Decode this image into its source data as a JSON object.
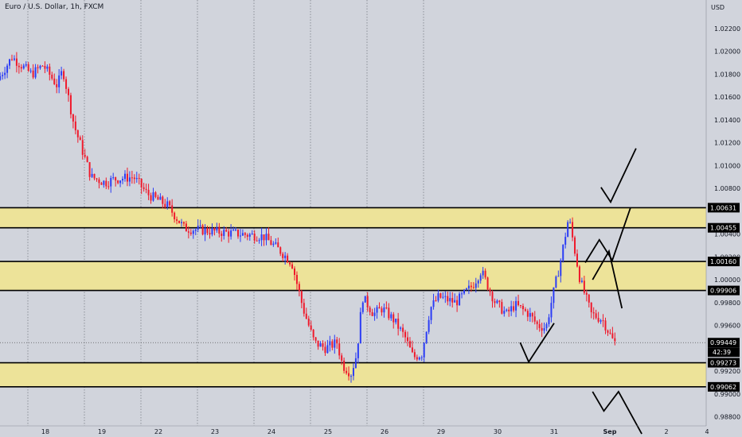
{
  "header": {
    "title": "Euro / U.S. Dollar, 1h, FXCM"
  },
  "axis": {
    "currency": "USD"
  },
  "colors": {
    "background": "#d1d4dc",
    "up": "#2b3cf5",
    "down": "#ef1a2c",
    "zone_fill": "#ede399",
    "zone_border": "#000000",
    "grid_dotted": "#7a7e88",
    "drawing": "#000000",
    "tag_bg": "#000000",
    "tag_text": "#ffffff"
  },
  "chart_data": {
    "type": "candlestick",
    "title": "Euro / U.S. Dollar, 1h, FXCM",
    "ylabel": "USD",
    "ylim": [
      0.9872,
      1.0245
    ],
    "y_ticks": [
      1.022,
      1.02,
      1.018,
      1.016,
      1.014,
      1.012,
      1.01,
      1.008,
      1.004,
      1.002,
      1.0,
      0.998,
      0.996,
      0.992,
      0.99,
      0.988
    ],
    "x_ticks": [
      "18",
      "19",
      "22",
      "23",
      "24",
      "25",
      "26",
      "29",
      "30",
      "31",
      "Sep",
      "2",
      "4"
    ],
    "session_dividers": true,
    "zones": [
      {
        "top": 1.00631,
        "bottom": 1.00455
      },
      {
        "top": 1.0016,
        "bottom": 0.99906
      },
      {
        "top": 0.99273,
        "bottom": 0.99062
      }
    ],
    "price_tags": [
      "1.00631",
      "1.00455",
      "1.00160",
      "0.99906",
      "0.99449",
      "0.99273",
      "0.99062"
    ],
    "countdown": "42:39",
    "current_price": 0.99449,
    "keypoints": [
      {
        "d": 17.2,
        "p": 1.0175
      },
      {
        "d": 17.45,
        "p": 1.0195
      },
      {
        "d": 17.8,
        "p": 1.018
      },
      {
        "d": 18.0,
        "p": 1.0188
      },
      {
        "d": 18.25,
        "p": 1.017
      },
      {
        "d": 18.35,
        "p": 1.0184
      },
      {
        "d": 18.55,
        "p": 1.0135
      },
      {
        "d": 18.75,
        "p": 1.0105
      },
      {
        "d": 18.85,
        "p": 1.009
      },
      {
        "d": 19.1,
        "p": 1.0085
      },
      {
        "d": 19.25,
        "p": 1.0088
      },
      {
        "d": 19.6,
        "p": 1.009
      },
      {
        "d": 19.85,
        "p": 1.0075
      },
      {
        "d": 20.2,
        "p": 1.0065
      },
      {
        "d": 20.5,
        "p": 1.0045
      },
      {
        "d": 21.9,
        "p": 1.0038
      },
      {
        "d": 22.2,
        "p": 1.0025
      },
      {
        "d": 22.4,
        "p": 1.0015
      },
      {
        "d": 22.6,
        "p": 0.9975
      },
      {
        "d": 22.8,
        "p": 0.9945
      },
      {
        "d": 23.0,
        "p": 0.994
      },
      {
        "d": 23.2,
        "p": 0.9945
      },
      {
        "d": 23.3,
        "p": 0.9925
      },
      {
        "d": 23.45,
        "p": 0.9918
      },
      {
        "d": 23.55,
        "p": 0.9935
      },
      {
        "d": 23.65,
        "p": 0.9985
      },
      {
        "d": 23.85,
        "p": 0.997
      },
      {
        "d": 24.0,
        "p": 0.9975
      },
      {
        "d": 24.2,
        "p": 0.9965
      },
      {
        "d": 24.4,
        "p": 0.995
      },
      {
        "d": 24.55,
        "p": 0.9932
      },
      {
        "d": 24.7,
        "p": 0.9935
      },
      {
        "d": 24.85,
        "p": 0.9975
      },
      {
        "d": 25.0,
        "p": 0.9985
      },
      {
        "d": 25.3,
        "p": 0.998
      },
      {
        "d": 25.6,
        "p": 0.9995
      },
      {
        "d": 25.75,
        "p": 1.0008
      },
      {
        "d": 26.0,
        "p": 0.998
      },
      {
        "d": 26.2,
        "p": 0.997
      },
      {
        "d": 26.35,
        "p": 0.9978
      },
      {
        "d": 26.6,
        "p": 0.997
      },
      {
        "d": 26.75,
        "p": 0.996
      },
      {
        "d": 26.9,
        "p": 0.9958
      },
      {
        "d": 27.0,
        "p": 0.9982
      },
      {
        "d": 27.15,
        "p": 1.0015
      },
      {
        "d": 27.3,
        "p": 1.0055
      },
      {
        "d": 27.5,
        "p": 1.0
      },
      {
        "d": 27.7,
        "p": 0.997
      },
      {
        "d": 27.9,
        "p": 0.9965
      },
      {
        "d": 28.1,
        "p": 0.9945
      }
    ],
    "projections": [
      [
        {
          "d": 27.83,
          "p": 1.0081
        },
        {
          "d": 28.0,
          "p": 1.0068
        },
        {
          "d": 28.45,
          "p": 1.0115
        }
      ],
      [
        {
          "d": 27.55,
          "p": 1.0015
        },
        {
          "d": 27.8,
          "p": 1.0035
        },
        {
          "d": 28.03,
          "p": 1.0017
        },
        {
          "d": 28.35,
          "p": 1.0063
        }
      ],
      [
        {
          "d": 27.68,
          "p": 1.0
        },
        {
          "d": 27.97,
          "p": 1.0025
        },
        {
          "d": 28.2,
          "p": 0.9975
        }
      ],
      [
        {
          "d": 26.4,
          "p": 0.9945
        },
        {
          "d": 26.55,
          "p": 0.9928
        },
        {
          "d": 27.0,
          "p": 0.9962
        }
      ],
      [
        {
          "d": 27.68,
          "p": 0.9902
        },
        {
          "d": 27.88,
          "p": 0.9885
        },
        {
          "d": 28.14,
          "p": 0.9902
        },
        {
          "d": 28.55,
          "p": 0.9865
        }
      ]
    ]
  }
}
